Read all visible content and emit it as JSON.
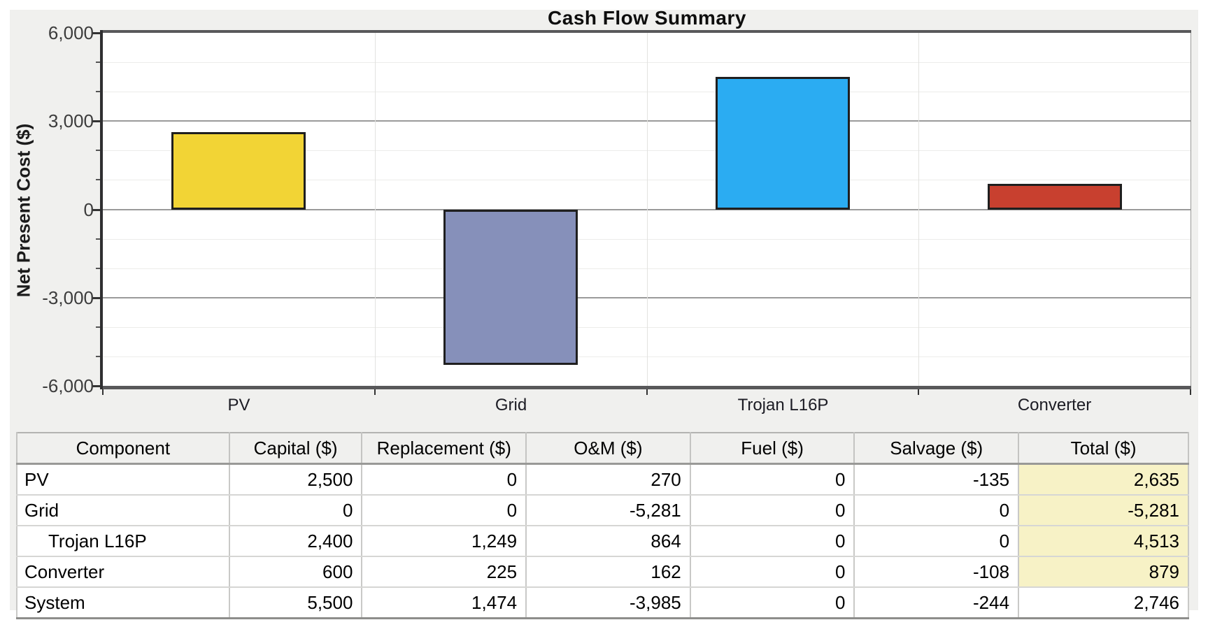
{
  "chart_data": {
    "type": "bar",
    "title": "Cash Flow Summary",
    "ylabel": "Net Present Cost ($)",
    "xlabel": "",
    "categories": [
      "PV",
      "Grid",
      "Trojan L16P",
      "Converter"
    ],
    "values": [
      2635,
      -5281,
      4513,
      879
    ],
    "bar_colors": [
      "#f2d435",
      "#8690ba",
      "#2bacf2",
      "#c8402f"
    ],
    "ylim": [
      -6000,
      6000
    ],
    "y_major_step": 3000,
    "y_minor_step": 1000,
    "y_tick_labels": [
      {
        "value": 6000,
        "label": "6,000"
      },
      {
        "value": 3000,
        "label": "3,000"
      },
      {
        "value": 0,
        "label": "0"
      },
      {
        "value": -3000,
        "label": "-3,000"
      },
      {
        "value": -6000,
        "label": "-6,000"
      }
    ],
    "grid": true,
    "legend": false
  },
  "table": {
    "columns": [
      "Component",
      "Capital ($)",
      "Replacement ($)",
      "O&M ($)",
      "Fuel ($)",
      "Salvage ($)",
      "Total ($)"
    ],
    "rows": [
      {
        "component": "PV",
        "indent": false,
        "values": [
          "2,500",
          "0",
          "270",
          "0",
          "-135",
          "2,635"
        ],
        "total_highlight": true
      },
      {
        "component": "Grid",
        "indent": false,
        "values": [
          "0",
          "0",
          "-5,281",
          "0",
          "0",
          "-5,281"
        ],
        "total_highlight": true
      },
      {
        "component": "Trojan L16P",
        "indent": true,
        "values": [
          "2,400",
          "1,249",
          "864",
          "0",
          "0",
          "4,513"
        ],
        "total_highlight": true
      },
      {
        "component": "Converter",
        "indent": false,
        "values": [
          "600",
          "225",
          "162",
          "0",
          "-108",
          "879"
        ],
        "total_highlight": true
      },
      {
        "component": "System",
        "indent": false,
        "values": [
          "5,500",
          "1,474",
          "-3,985",
          "0",
          "-244",
          "2,746"
        ],
        "total_highlight": false
      }
    ],
    "highlight_color": "#f7f2c6"
  }
}
